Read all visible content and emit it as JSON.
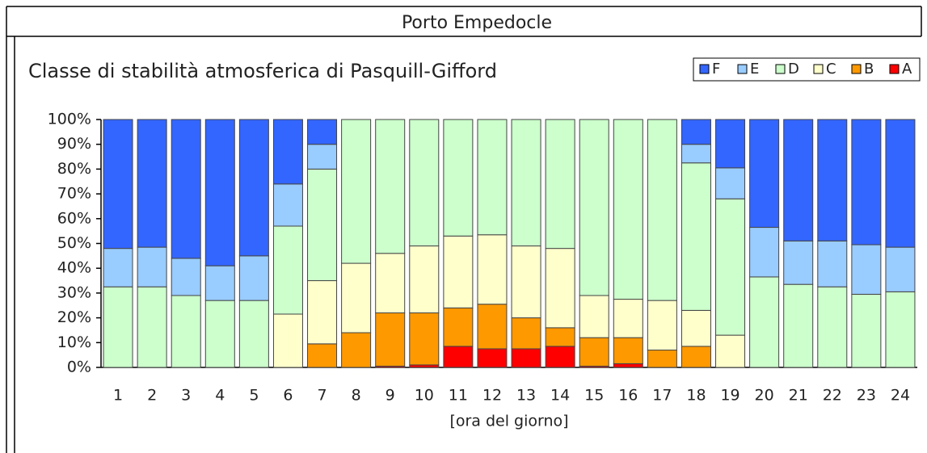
{
  "header": {
    "title": "Porto Empedocle"
  },
  "chart_data": {
    "type": "bar",
    "stacked": true,
    "title": "Classe di stabilità atmosferica di Pasquill-Gifford",
    "x_label": "[ora del giorno]",
    "categories": [
      "1",
      "2",
      "3",
      "4",
      "5",
      "6",
      "7",
      "8",
      "9",
      "10",
      "11",
      "12",
      "13",
      "14",
      "15",
      "16",
      "17",
      "18",
      "19",
      "20",
      "21",
      "22",
      "23",
      "24"
    ],
    "series": [
      {
        "name": "F",
        "color": "#3366ff",
        "values": [
          52,
          51.5,
          56,
          59,
          55,
          26,
          10,
          0,
          0,
          0,
          0,
          0,
          0,
          0,
          0,
          0,
          0,
          10,
          19.5,
          43.5,
          49,
          49,
          50.5,
          51.5
        ]
      },
      {
        "name": "E",
        "color": "#99ccff",
        "values": [
          15.5,
          16,
          15,
          14,
          18,
          17,
          10,
          0,
          0,
          0,
          0,
          0,
          0,
          0,
          0,
          0,
          0,
          7.5,
          12.5,
          20,
          17.5,
          18.5,
          20,
          18
        ]
      },
      {
        "name": "D",
        "color": "#ccffcc",
        "values": [
          32.5,
          32.5,
          29,
          27,
          27,
          35.5,
          45,
          58,
          54,
          51,
          47,
          46.5,
          51,
          52,
          71,
          72.5,
          73,
          59.5,
          55,
          36.5,
          33.5,
          32.5,
          29.5,
          30.5
        ]
      },
      {
        "name": "C",
        "color": "#ffffcc",
        "values": [
          0,
          0,
          0,
          0,
          0,
          21.5,
          25.5,
          28,
          24,
          27,
          29,
          28,
          29,
          32,
          17,
          15.5,
          20,
          14.5,
          13,
          0,
          0,
          0,
          0,
          0
        ]
      },
      {
        "name": "B",
        "color": "#ff9900",
        "values": [
          0,
          0,
          0,
          0,
          0,
          0,
          9.5,
          14,
          21.5,
          21,
          15.5,
          18,
          12.5,
          7.5,
          11.5,
          10.5,
          7,
          8.5,
          0,
          0,
          0,
          0,
          0,
          0
        ]
      },
      {
        "name": "A",
        "color": "#ff0000",
        "values": [
          0,
          0,
          0,
          0,
          0,
          0,
          0,
          0,
          0.5,
          1,
          8.5,
          7.5,
          7.5,
          8.5,
          0.5,
          1.5,
          0,
          0,
          0,
          0,
          0,
          0,
          0,
          0
        ]
      }
    ],
    "ylim": [
      0,
      100
    ],
    "yticks": [
      {
        "value": 0,
        "label": "0%"
      },
      {
        "value": 10,
        "label": "10%"
      },
      {
        "value": 20,
        "label": "20%"
      },
      {
        "value": 30,
        "label": "30%"
      },
      {
        "value": 40,
        "label": "40%"
      },
      {
        "value": 50,
        "label": "50%"
      },
      {
        "value": 60,
        "label": "60%"
      },
      {
        "value": 70,
        "label": "70%"
      },
      {
        "value": 80,
        "label": "80%"
      },
      {
        "value": 90,
        "label": "90%"
      },
      {
        "value": 100,
        "label": "100%"
      }
    ],
    "grid": false,
    "legend": "upper right"
  }
}
